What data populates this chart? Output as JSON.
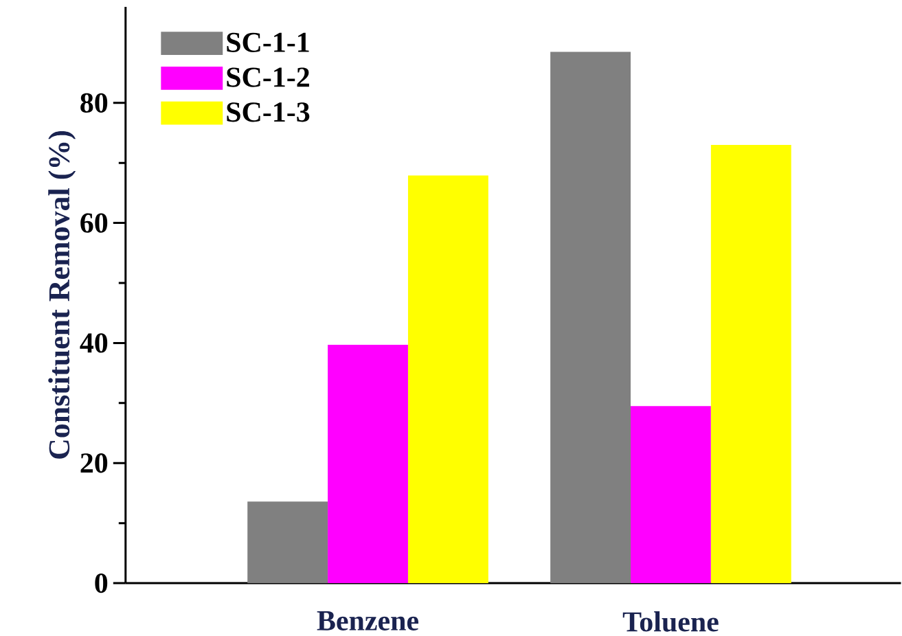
{
  "chart_data": {
    "type": "bar",
    "ylabel": "Constituent Removal (%)",
    "categories": [
      "Benzene",
      "Toluene"
    ],
    "series": [
      {
        "name": "SC-1-1",
        "color": "#808080",
        "values": [
          13.6,
          88.5
        ]
      },
      {
        "name": "SC-1-2",
        "color": "#ff00ff",
        "values": [
          39.7,
          29.5
        ]
      },
      {
        "name": "SC-1-3",
        "color": "#ffff00",
        "values": [
          67.9,
          73.0
        ]
      }
    ],
    "ylim": [
      0,
      96
    ],
    "yticks": [
      0,
      20,
      40,
      60,
      80
    ],
    "grid": false,
    "legend": "top left"
  }
}
